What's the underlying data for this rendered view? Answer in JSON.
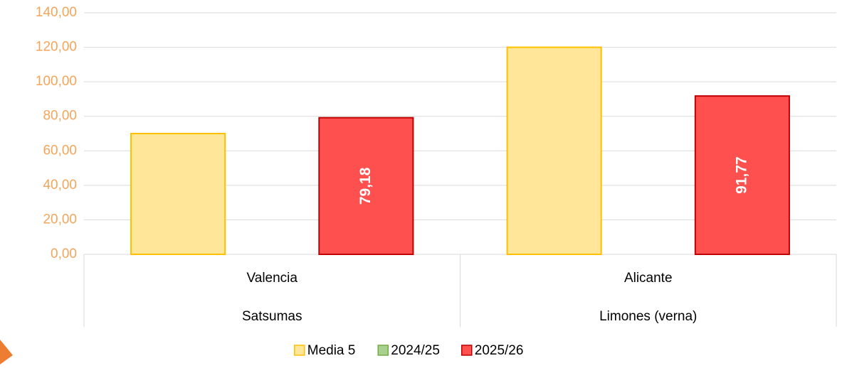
{
  "chart_data": {
    "type": "bar",
    "categories": [
      "Valencia",
      "Alicante"
    ],
    "category_groups": [
      "Satsumas",
      "Limones (verna)"
    ],
    "series": [
      {
        "name": "Media 5",
        "color": "#ffe699",
        "stroke": "#ffc000",
        "values": [
          70,
          120
        ]
      },
      {
        "name": "2024/25",
        "color": "#a9d18e",
        "stroke": "#70ad47",
        "values": [
          null,
          null
        ]
      },
      {
        "name": "2025/26",
        "color": "#ff5050",
        "stroke": "#c00000",
        "values": [
          79.18,
          91.77
        ],
        "value_labels": [
          "79,18",
          "91,77"
        ]
      }
    ],
    "ylim": [
      0,
      140
    ],
    "yticks": [
      {
        "value": 0,
        "label": "0,00"
      },
      {
        "value": 20,
        "label": "20,00"
      },
      {
        "value": 40,
        "label": "40,00"
      },
      {
        "value": 60,
        "label": "60,00"
      },
      {
        "value": 80,
        "label": "80,00"
      },
      {
        "value": 100,
        "label": "100,00"
      },
      {
        "value": 120,
        "label": "120,00"
      },
      {
        "value": 140,
        "label": "140,00"
      }
    ],
    "grid": true,
    "legend": "bottom"
  }
}
